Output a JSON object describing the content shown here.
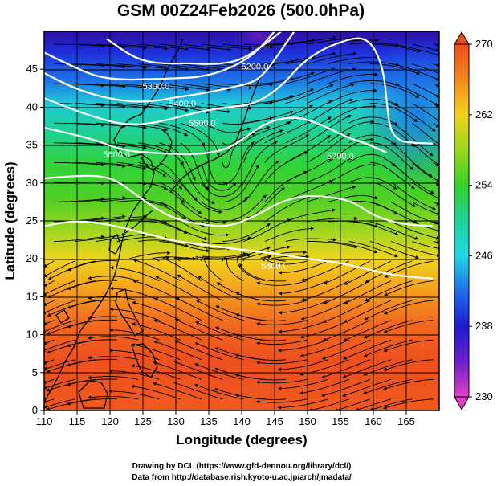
{
  "title": "GSM 00Z24Feb2026 (500.0hPa)",
  "xaxis": {
    "label": "Longitude (degrees)",
    "range": [
      110,
      170
    ],
    "ticks": [
      110,
      115,
      120,
      125,
      130,
      135,
      140,
      145,
      150,
      155,
      160,
      165
    ]
  },
  "yaxis": {
    "label": "Latitude  (degrees)",
    "range": [
      0,
      50
    ],
    "ticks": [
      0,
      5,
      10,
      15,
      20,
      25,
      30,
      35,
      40,
      45
    ]
  },
  "colorbar": {
    "min": 230,
    "max": 270,
    "labels": [
      270,
      262,
      254,
      246,
      238,
      230
    ],
    "stops": [
      {
        "value": 230,
        "color": "#e23fc8"
      },
      {
        "value": 234,
        "color": "#6a20c9"
      },
      {
        "value": 238,
        "color": "#1f1ad2"
      },
      {
        "value": 242,
        "color": "#1d6ee8"
      },
      {
        "value": 246,
        "color": "#22d6e6"
      },
      {
        "value": 250,
        "color": "#1fd39a"
      },
      {
        "value": 254,
        "color": "#33d22a"
      },
      {
        "value": 258,
        "color": "#9ad61f"
      },
      {
        "value": 262,
        "color": "#f2d21d"
      },
      {
        "value": 266,
        "color": "#f28a1d"
      },
      {
        "value": 270,
        "color": "#ee4b1e"
      }
    ]
  },
  "contours": [
    {
      "label": "5200.0",
      "points": [
        [
          119.5,
          49
        ],
        [
          124,
          46.3
        ],
        [
          128,
          45.7
        ],
        [
          132,
          45.8
        ],
        [
          136,
          45.6
        ],
        [
          140,
          46.2
        ],
        [
          144,
          48.6
        ],
        [
          146,
          50
        ]
      ]
    },
    {
      "label": "5300.0",
      "points": [
        [
          110,
          47.2
        ],
        [
          114,
          45.5
        ],
        [
          118,
          44.0
        ],
        [
          122,
          43.6
        ],
        [
          126,
          43.7
        ],
        [
          130,
          43.8
        ],
        [
          134,
          44.0
        ],
        [
          138,
          45.0
        ],
        [
          142,
          47.0
        ],
        [
          145,
          50
        ]
      ]
    },
    {
      "label": "5400.0",
      "points": [
        [
          110,
          44.5
        ],
        [
          114,
          42.7
        ],
        [
          118,
          41.5
        ],
        [
          122,
          40.8
        ],
        [
          126,
          40.7
        ],
        [
          130,
          41.3
        ],
        [
          134,
          41.8
        ],
        [
          138,
          42.5
        ],
        [
          142,
          43.3
        ],
        [
          144,
          45
        ],
        [
          146,
          47.5
        ],
        [
          148,
          50
        ]
      ]
    },
    {
      "label": "5500.0",
      "points": [
        [
          110,
          41.2
        ],
        [
          114,
          39.8
        ],
        [
          118,
          38.6
        ],
        [
          122,
          37.7
        ],
        [
          126,
          37.8
        ],
        [
          130,
          38.6
        ],
        [
          134,
          39.5
        ],
        [
          138,
          40.0
        ],
        [
          142,
          40.4
        ],
        [
          146,
          42.7
        ],
        [
          149,
          45.7
        ],
        [
          152,
          47.5
        ],
        [
          155,
          48.6
        ],
        [
          158,
          49.3
        ],
        [
          160,
          48.2
        ],
        [
          161.5,
          45
        ],
        [
          162,
          41
        ],
        [
          162.5,
          37
        ],
        [
          164,
          35.5
        ],
        [
          166,
          35.3
        ],
        [
          169,
          35.2
        ]
      ]
    },
    {
      "label": "5600.0",
      "points": [
        [
          110,
          37.3
        ],
        [
          114,
          36.5
        ],
        [
          118,
          35.6
        ],
        [
          122,
          34.3
        ],
        [
          126,
          34.0
        ],
        [
          130,
          33.8
        ],
        [
          134,
          33.8
        ],
        [
          138,
          34.5
        ],
        [
          141,
          36.3
        ],
        [
          144,
          38.1
        ],
        [
          148,
          38.8
        ],
        [
          152,
          37.8
        ],
        [
          156,
          36.0
        ],
        [
          159,
          35.2
        ],
        [
          162,
          34.0
        ]
      ]
    },
    {
      "label": "5700.0",
      "points": [
        [
          110,
          30.6
        ],
        [
          114,
          30.9
        ],
        [
          118,
          31.0
        ],
        [
          121,
          30.4
        ],
        [
          124,
          28.4
        ],
        [
          127,
          26.6
        ],
        [
          130,
          25.2
        ],
        [
          134,
          24.5
        ],
        [
          138,
          24.2
        ],
        [
          142,
          25.6
        ],
        [
          146,
          27.6
        ],
        [
          150,
          28.4
        ],
        [
          154,
          28.1
        ],
        [
          157,
          27.5
        ],
        [
          160,
          25.7
        ],
        [
          164,
          24.6
        ],
        [
          169,
          24.3
        ]
      ]
    },
    {
      "label": "5800.0",
      "points": [
        [
          110,
          24.3
        ],
        [
          114,
          25.0
        ],
        [
          118,
          24.8
        ],
        [
          122,
          24.1
        ],
        [
          126,
          23.2
        ],
        [
          130,
          22.3
        ],
        [
          134,
          21.9
        ],
        [
          138,
          21.4
        ],
        [
          142,
          21.0
        ],
        [
          146,
          20.6
        ],
        [
          150,
          20.0
        ],
        [
          154,
          19.6
        ],
        [
          158,
          18.9
        ],
        [
          162,
          18.0
        ],
        [
          166,
          17.6
        ],
        [
          169,
          17.4
        ]
      ]
    }
  ],
  "contour_labels": [
    {
      "text": "5200.0",
      "lon": 142,
      "lat": 45.4
    },
    {
      "text": "5300.0",
      "lon": 127,
      "lat": 42.8
    },
    {
      "text": "5400.0",
      "lon": 131,
      "lat": 40.5
    },
    {
      "text": "5500.0",
      "lon": 134,
      "lat": 37.9
    },
    {
      "text": "5600.0",
      "lon": 121,
      "lat": 33.8
    },
    {
      "text": "5700.0",
      "lon": 155,
      "lat": 33.6
    },
    {
      "text": "5800.0",
      "lon": 145,
      "lat": 19.1
    }
  ],
  "credits": [
    "Drawing by DCL (https://www.gfd-dennou.org/library/dcl/)",
    "Data from http://database.rish.kyoto-u.ac.jp/arch/jmadata/"
  ]
}
